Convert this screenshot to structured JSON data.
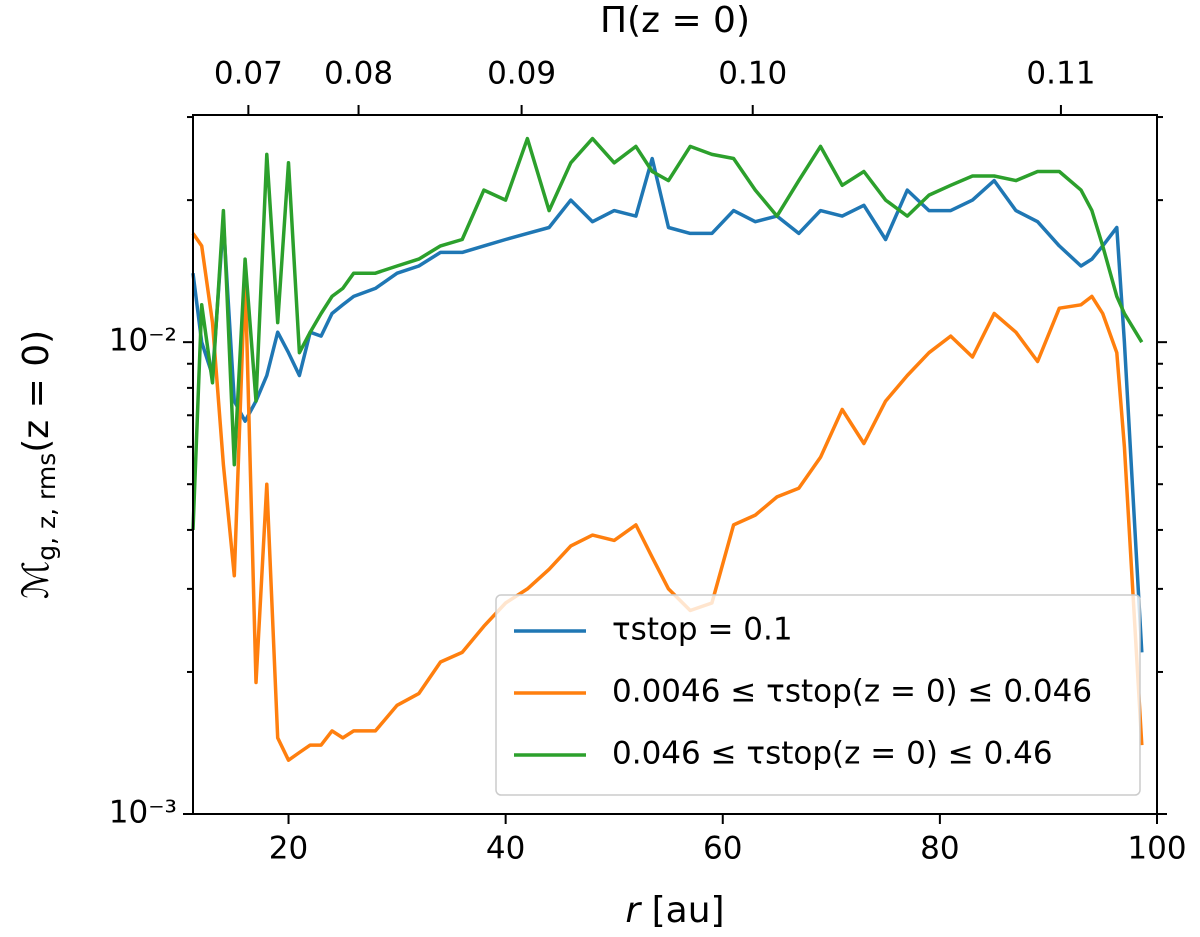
{
  "chart_data": {
    "type": "line",
    "top_axis_label": "Π(z = 0)",
    "xlabel": {
      "symbol": "r",
      "suffix": " [au]"
    },
    "ylabel": {
      "symbol": "ℳ",
      "subscript": "g, z, rms",
      "suffix": "(z = 0)"
    },
    "x": [
      11.2,
      12,
      13,
      14,
      15,
      16,
      17,
      18,
      19,
      20,
      21,
      22,
      23,
      24,
      25,
      26,
      28,
      30,
      32,
      34,
      36,
      38,
      40,
      42,
      44,
      46,
      48,
      50,
      52,
      53.5,
      55,
      57,
      59,
      61,
      63,
      65,
      67,
      69,
      71,
      73,
      75,
      77,
      79,
      81,
      83,
      85,
      87,
      89,
      91,
      93,
      94,
      95,
      96.3,
      97,
      98.6
    ],
    "series": [
      {
        "name": "τstop = 0.1",
        "color": "#1f77b4",
        "values": [
          0.014,
          0.01,
          0.0085,
          0.018,
          0.0075,
          0.0068,
          0.0075,
          0.0085,
          0.0105,
          0.0095,
          0.0085,
          0.0105,
          0.0103,
          0.0115,
          0.012,
          0.0125,
          0.013,
          0.014,
          0.0145,
          0.0155,
          0.0155,
          0.016,
          0.0165,
          0.017,
          0.0175,
          0.02,
          0.018,
          0.019,
          0.0185,
          0.0245,
          0.0175,
          0.017,
          0.017,
          0.019,
          0.018,
          0.0185,
          0.017,
          0.019,
          0.0185,
          0.0195,
          0.0165,
          0.021,
          0.019,
          0.019,
          0.02,
          0.022,
          0.019,
          0.018,
          0.016,
          0.0145,
          0.015,
          0.016,
          0.0175,
          0.01,
          0.0022
        ]
      },
      {
        "name": "0.0046 ≤ τstop(z = 0) ≤ 0.046",
        "color": "#ff7f0e",
        "values": [
          0.017,
          0.016,
          0.011,
          0.0055,
          0.0032,
          0.014,
          0.0019,
          0.005,
          0.00145,
          0.0013,
          0.00135,
          0.0014,
          0.0014,
          0.0015,
          0.00145,
          0.0015,
          0.0015,
          0.0017,
          0.0018,
          0.0021,
          0.0022,
          0.0025,
          0.0028,
          0.003,
          0.0033,
          0.0037,
          0.0039,
          0.0038,
          0.0041,
          0.0035,
          0.003,
          0.0027,
          0.0028,
          0.0041,
          0.0043,
          0.0047,
          0.0049,
          0.0057,
          0.0072,
          0.0061,
          0.0075,
          0.0085,
          0.0095,
          0.0103,
          0.0093,
          0.0115,
          0.0105,
          0.0091,
          0.0118,
          0.012,
          0.0125,
          0.0115,
          0.0095,
          0.006,
          0.0014
        ]
      },
      {
        "name": "0.046 ≤ τstop(z = 0) ≤ 0.46",
        "color": "#2ca02c",
        "values": [
          0.004,
          0.012,
          0.0082,
          0.019,
          0.0055,
          0.015,
          0.0075,
          0.025,
          0.011,
          0.024,
          0.0095,
          0.0105,
          0.0115,
          0.0125,
          0.013,
          0.014,
          0.014,
          0.0145,
          0.015,
          0.016,
          0.0165,
          0.021,
          0.02,
          0.027,
          0.019,
          0.024,
          0.027,
          0.024,
          0.026,
          0.023,
          0.022,
          0.026,
          0.025,
          0.0245,
          0.021,
          0.0185,
          0.022,
          0.026,
          0.0215,
          0.023,
          0.02,
          0.0185,
          0.0205,
          0.0215,
          0.0225,
          0.0225,
          0.022,
          0.023,
          0.023,
          0.021,
          0.019,
          0.016,
          0.0125,
          0.0115,
          0.01
        ]
      }
    ],
    "xlim": [
      11.2,
      100
    ],
    "xticks": [
      20,
      40,
      60,
      80,
      100
    ],
    "ylim": [
      0.001,
      0.0303
    ],
    "ylog": true,
    "yticks": [
      {
        "value": 0.001,
        "label": "10⁻³"
      },
      {
        "value": 0.01,
        "label": "10⁻²"
      }
    ],
    "yminorticks": [
      0.002,
      0.003,
      0.004,
      0.005,
      0.006,
      0.007,
      0.008,
      0.009,
      0.02,
      0.03
    ],
    "x2ticks": [
      {
        "value": 0.07,
        "label": "0.07",
        "at_x": 16.3
      },
      {
        "value": 0.08,
        "label": "0.08",
        "at_x": 26.45
      },
      {
        "value": 0.09,
        "label": "0.09",
        "at_x": 41.47
      },
      {
        "value": 0.1,
        "label": "0.10",
        "at_x": 62.76
      },
      {
        "value": 0.11,
        "label": "0.11",
        "at_x": 91.15
      }
    ],
    "legend": "lower right"
  }
}
